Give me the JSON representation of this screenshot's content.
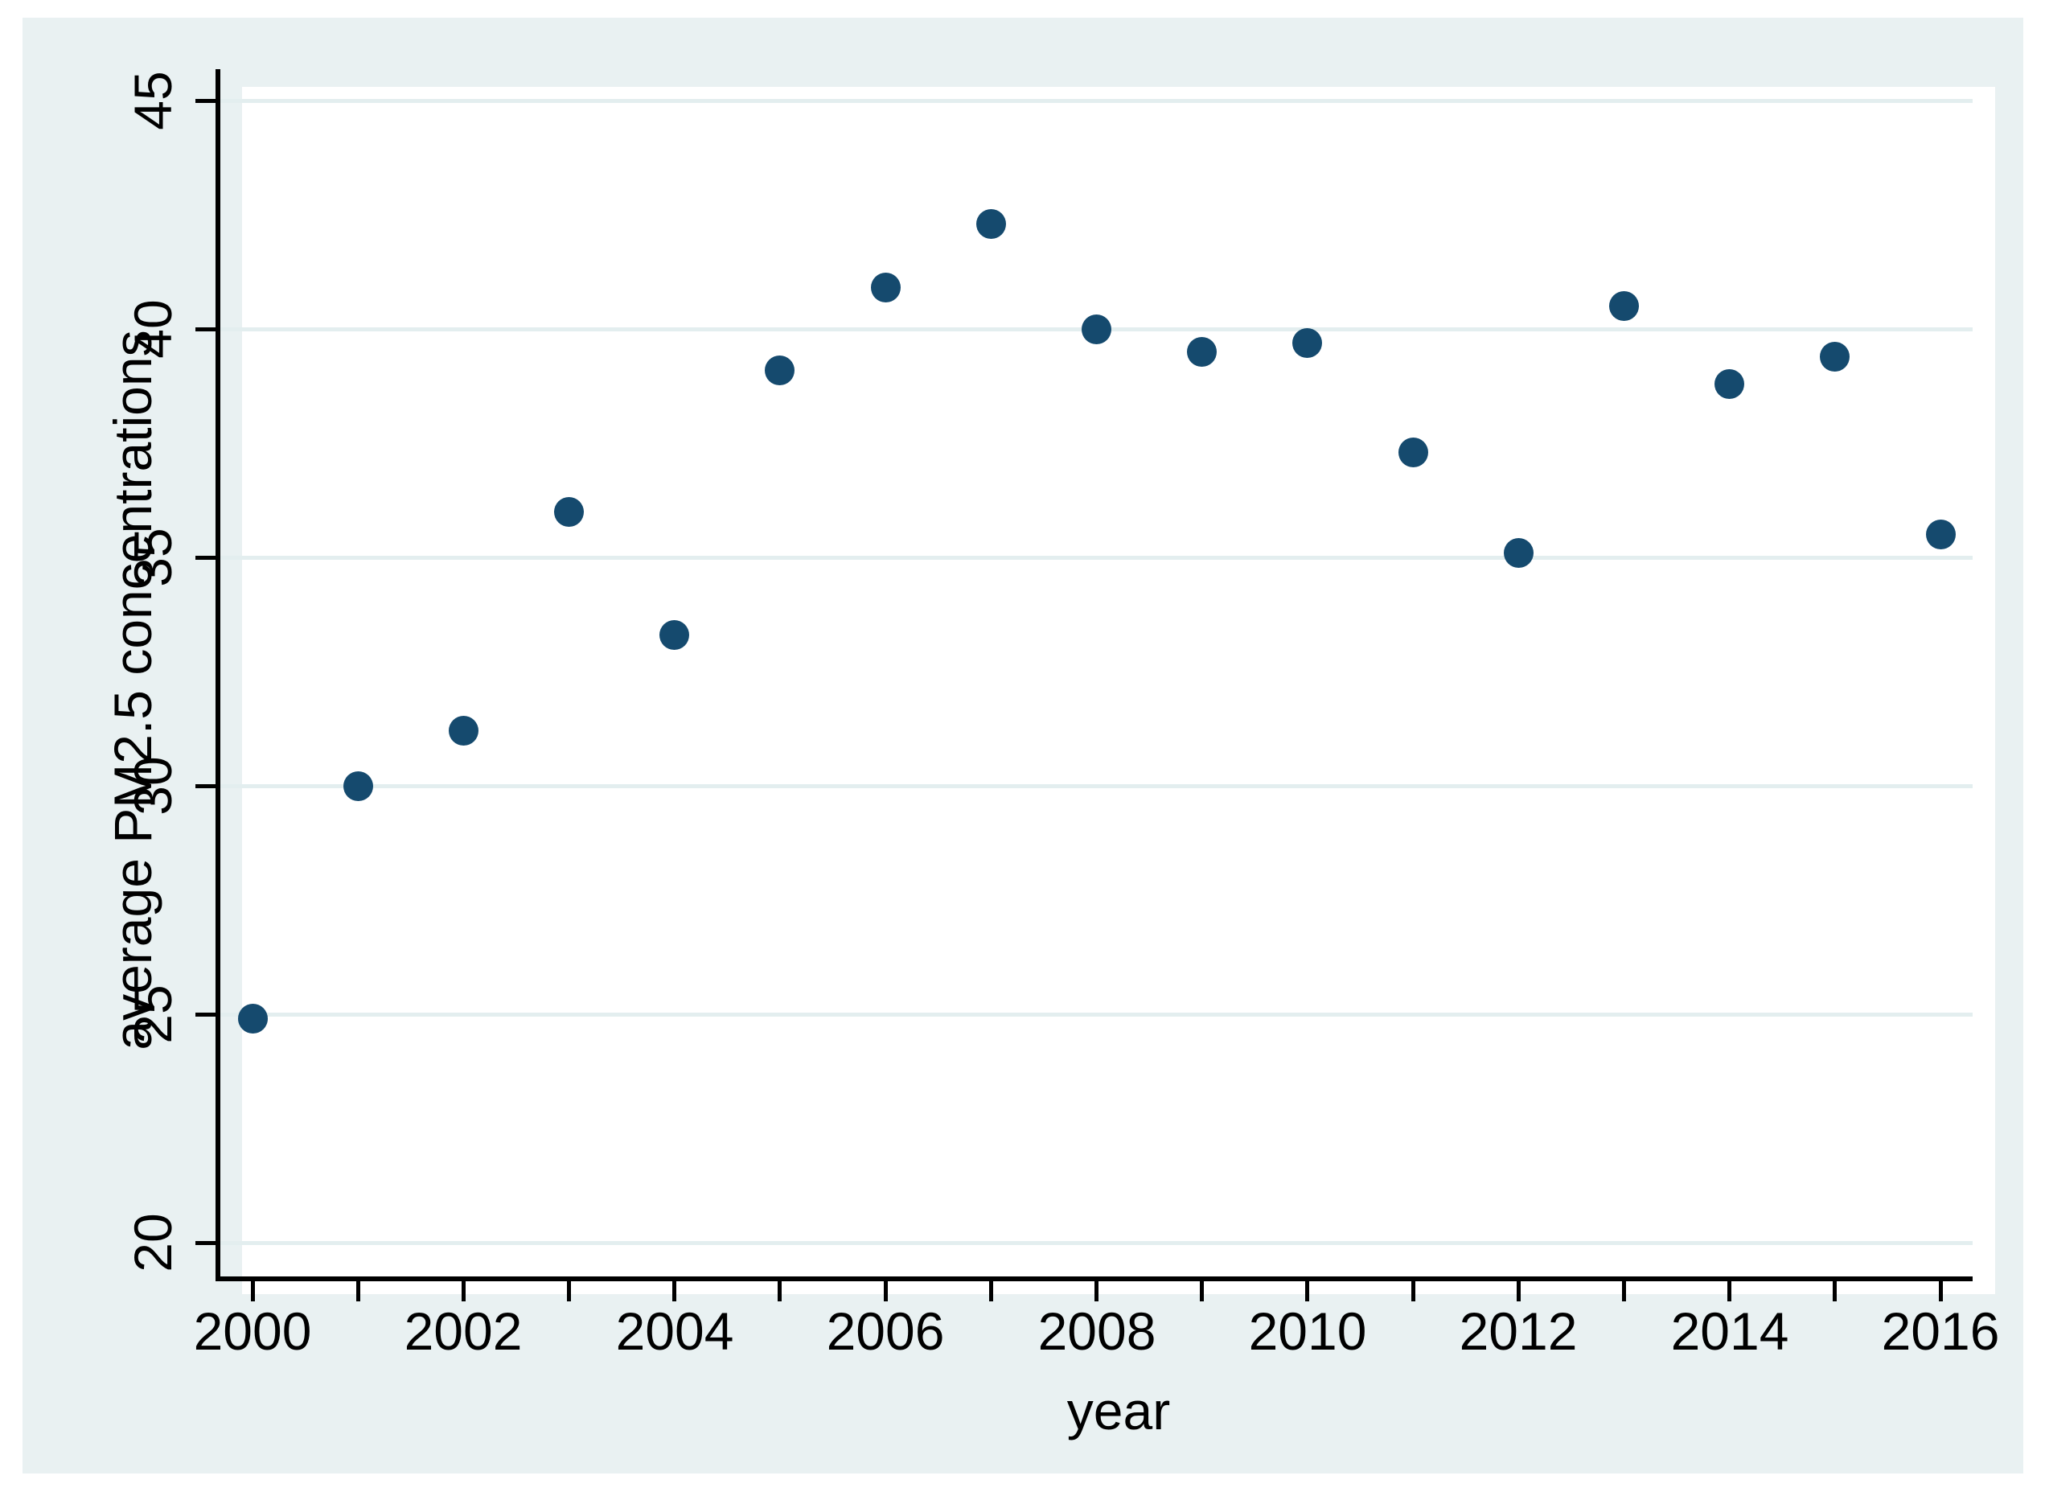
{
  "colors": {
    "page_background": "#ffffff",
    "figure_background": "#e9f1f2",
    "plot_background": "#ffffff",
    "gridline": "#e3eeef",
    "axis": "#000000",
    "text": "#000000",
    "marker": "#154a6e"
  },
  "chart_data": {
    "type": "scatter",
    "title": "",
    "xlabel": "year",
    "ylabel": "average PM2.5 concentrations",
    "x": [
      2000,
      2001,
      2002,
      2003,
      2004,
      2005,
      2006,
      2007,
      2008,
      2009,
      2010,
      2011,
      2012,
      2013,
      2014,
      2015,
      2016
    ],
    "y": [
      24.9,
      30.0,
      31.2,
      36.0,
      33.3,
      39.1,
      40.9,
      42.3,
      40.0,
      39.5,
      39.7,
      37.3,
      35.1,
      40.5,
      38.8,
      39.4,
      35.5
    ],
    "series_name": "average PM2.5 concentrations",
    "xlim": [
      1999.7,
      2016.3
    ],
    "ylim": [
      19.3,
      45.7
    ],
    "xticks": [
      2000,
      2001,
      2002,
      2003,
      2004,
      2005,
      2006,
      2007,
      2008,
      2009,
      2010,
      2011,
      2012,
      2013,
      2014,
      2015,
      2016
    ],
    "xtick_labels": [
      "2000",
      "2002",
      "2004",
      "2006",
      "2008",
      "2010",
      "2012",
      "2014",
      "2016"
    ],
    "yticks": [
      20,
      25,
      30,
      35,
      40,
      45
    ],
    "ytick_labels": [
      "20",
      "25",
      "30",
      "35",
      "40",
      "45"
    ],
    "grid": "horizontal",
    "legend": "none",
    "marker_shape": "circle"
  }
}
